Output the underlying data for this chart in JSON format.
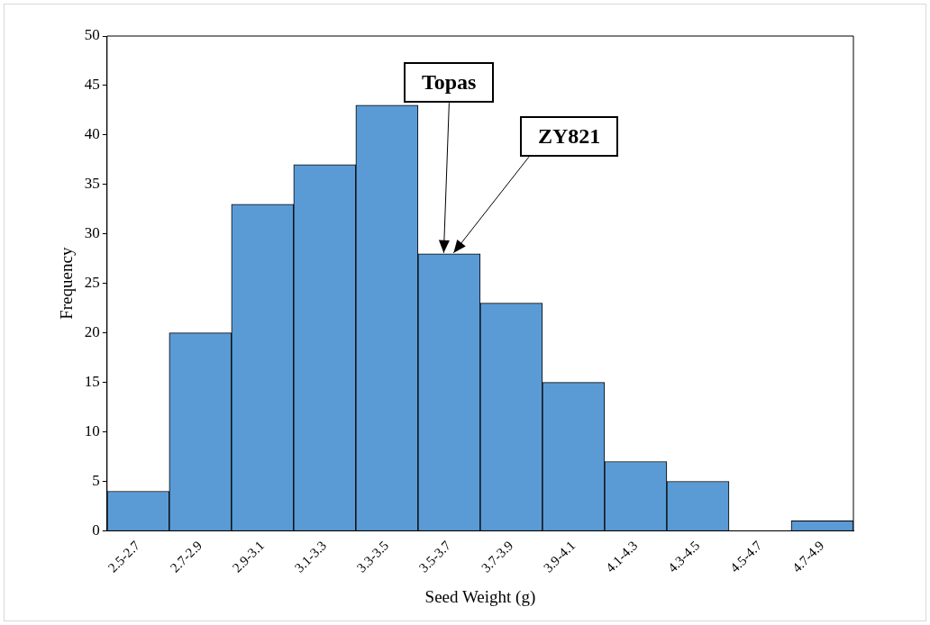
{
  "chart_data": {
    "type": "bar",
    "xlabel": "Seed Weight (g)",
    "ylabel": "Frequency",
    "categories": [
      "2.5-2.7",
      "2.7-2.9",
      "2.9-3.1",
      "3.1-3.3",
      "3.3-3.5",
      "3.5-3.7",
      "3.7-3.9",
      "3.9-4.1",
      "4.1-4.3",
      "4.3-4.5",
      "4.5-4.7",
      "4.7-4.9"
    ],
    "values": [
      4,
      20,
      33,
      37,
      43,
      28,
      23,
      15,
      7,
      5,
      0,
      1
    ],
    "color": "#5b9bd5",
    "ylim": [
      0,
      50
    ],
    "yticks": [
      0,
      5,
      10,
      15,
      20,
      25,
      30,
      35,
      40,
      45,
      50
    ],
    "grid": false,
    "legend": false,
    "annotations": [
      {
        "text": "Topas",
        "x": "3.5-3.7",
        "y": 28
      },
      {
        "text": "ZY821",
        "x": "3.5-3.7",
        "y": 28
      }
    ]
  }
}
